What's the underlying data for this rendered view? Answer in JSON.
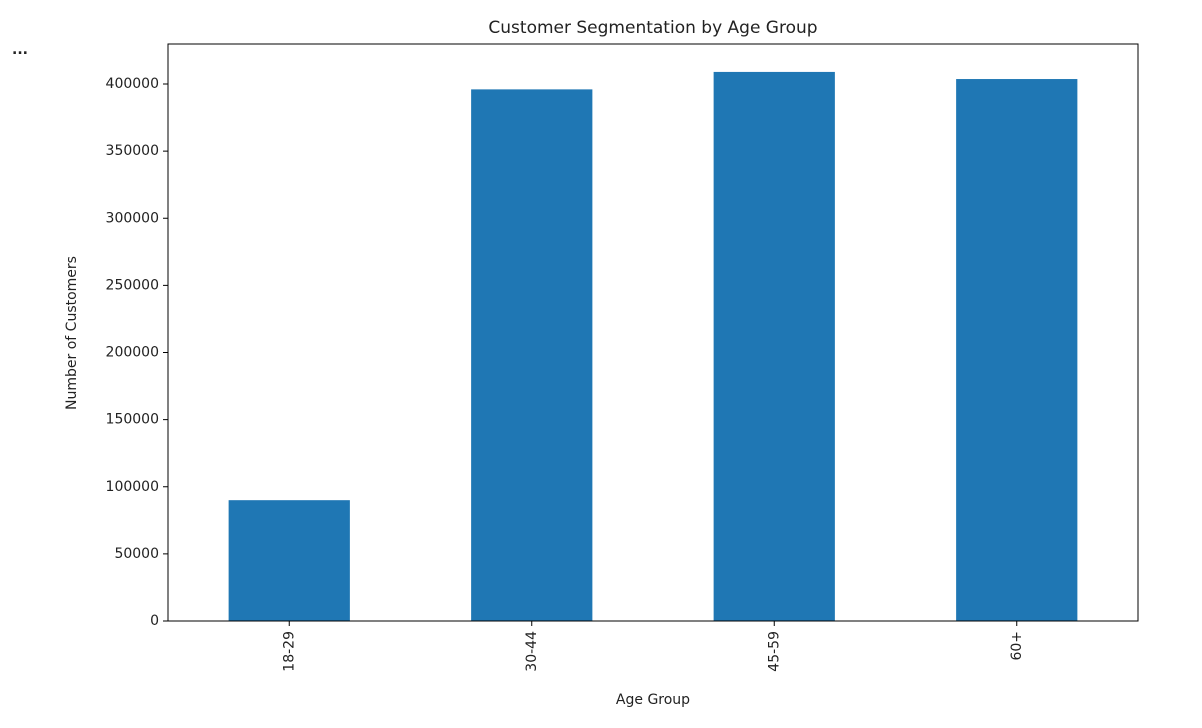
{
  "menu": "...",
  "chart_data": {
    "type": "bar",
    "title": "Customer Segmentation by Age Group",
    "x_label": "Age Group",
    "y_label": "Number of Customers",
    "categories": [
      "18-29",
      "30-44",
      "45-59",
      "60+"
    ],
    "values": [
      90000,
      396000,
      409000,
      403700
    ],
    "color": "#1f77b4",
    "ylim": [
      0,
      429800
    ],
    "yticks": [
      0,
      50000,
      100000,
      150000,
      200000,
      250000,
      300000,
      350000,
      400000
    ],
    "grid": false
  }
}
